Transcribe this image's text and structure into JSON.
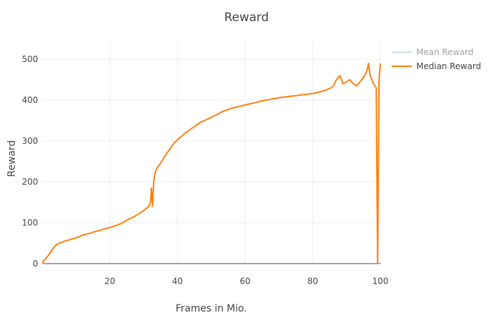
{
  "chart_data": {
    "type": "line",
    "title": "Reward",
    "xlabel": "Frames in Mio.",
    "ylabel": "Reward",
    "xlim": [
      0,
      100
    ],
    "ylim": [
      0,
      545
    ],
    "x_ticks": [
      20,
      40,
      60,
      80,
      100
    ],
    "y_ticks": [
      0,
      100,
      200,
      300,
      400,
      500
    ],
    "grid": true,
    "legend_position": "top-right",
    "series": [
      {
        "name": "Mean Reward",
        "color": "#9ec3dc",
        "visible": false,
        "points": []
      },
      {
        "name": "Median Reward",
        "color": "#ff7f0e",
        "visible": true,
        "points": [
          [
            0,
            2
          ],
          [
            1,
            12
          ],
          [
            2,
            22
          ],
          [
            3,
            35
          ],
          [
            4,
            45
          ],
          [
            5,
            50
          ],
          [
            6,
            53
          ],
          [
            7,
            56
          ],
          [
            8,
            58
          ],
          [
            9,
            61
          ],
          [
            10,
            63
          ],
          [
            11,
            66
          ],
          [
            12,
            70
          ],
          [
            13,
            72
          ],
          [
            14,
            74
          ],
          [
            15,
            77
          ],
          [
            16,
            79
          ],
          [
            17,
            81
          ],
          [
            18,
            84
          ],
          [
            19,
            86
          ],
          [
            20,
            88
          ],
          [
            21,
            91
          ],
          [
            22,
            94
          ],
          [
            23,
            97
          ],
          [
            24,
            101
          ],
          [
            25,
            106
          ],
          [
            26,
            110
          ],
          [
            27,
            114
          ],
          [
            28,
            119
          ],
          [
            29,
            124
          ],
          [
            30,
            130
          ],
          [
            31,
            136
          ],
          [
            31.5,
            140
          ],
          [
            32,
            150
          ],
          [
            32.3,
            185
          ],
          [
            32.6,
            140
          ],
          [
            33,
            205
          ],
          [
            33.5,
            225
          ],
          [
            34,
            235
          ],
          [
            35,
            245
          ],
          [
            36,
            260
          ],
          [
            37,
            272
          ],
          [
            38,
            283
          ],
          [
            39,
            295
          ],
          [
            40,
            303
          ],
          [
            41,
            310
          ],
          [
            42,
            318
          ],
          [
            43,
            323
          ],
          [
            44,
            330
          ],
          [
            45,
            335
          ],
          [
            46,
            341
          ],
          [
            47,
            347
          ],
          [
            48,
            350
          ],
          [
            49,
            354
          ],
          [
            50,
            358
          ],
          [
            51,
            362
          ],
          [
            52,
            366
          ],
          [
            53,
            371
          ],
          [
            54,
            374
          ],
          [
            55,
            377
          ],
          [
            56,
            380
          ],
          [
            57,
            382
          ],
          [
            58,
            384
          ],
          [
            59,
            386
          ],
          [
            60,
            388
          ],
          [
            61,
            390
          ],
          [
            62,
            392
          ],
          [
            63,
            394
          ],
          [
            64,
            396
          ],
          [
            65,
            398
          ],
          [
            66,
            400
          ],
          [
            67,
            401
          ],
          [
            68,
            403
          ],
          [
            69,
            404
          ],
          [
            70,
            406
          ],
          [
            71,
            407
          ],
          [
            72,
            408
          ],
          [
            73,
            409
          ],
          [
            74,
            410
          ],
          [
            75,
            411
          ],
          [
            76,
            412
          ],
          [
            77,
            413
          ],
          [
            78,
            414
          ],
          [
            79,
            415
          ],
          [
            80,
            416
          ],
          [
            81,
            418
          ],
          [
            82,
            420
          ],
          [
            83,
            422
          ],
          [
            84,
            425
          ],
          [
            85,
            428
          ],
          [
            86,
            433
          ],
          [
            87,
            450
          ],
          [
            88,
            460
          ],
          [
            89,
            440
          ],
          [
            90,
            445
          ],
          [
            91,
            450
          ],
          [
            92,
            440
          ],
          [
            93,
            435
          ],
          [
            94,
            445
          ],
          [
            95,
            455
          ],
          [
            96,
            470
          ],
          [
            96.5,
            490
          ],
          [
            97,
            460
          ],
          [
            98,
            440
          ],
          [
            98.8,
            430
          ],
          [
            99.2,
            0
          ],
          [
            99.6,
            450
          ],
          [
            100,
            490
          ]
        ]
      }
    ]
  }
}
